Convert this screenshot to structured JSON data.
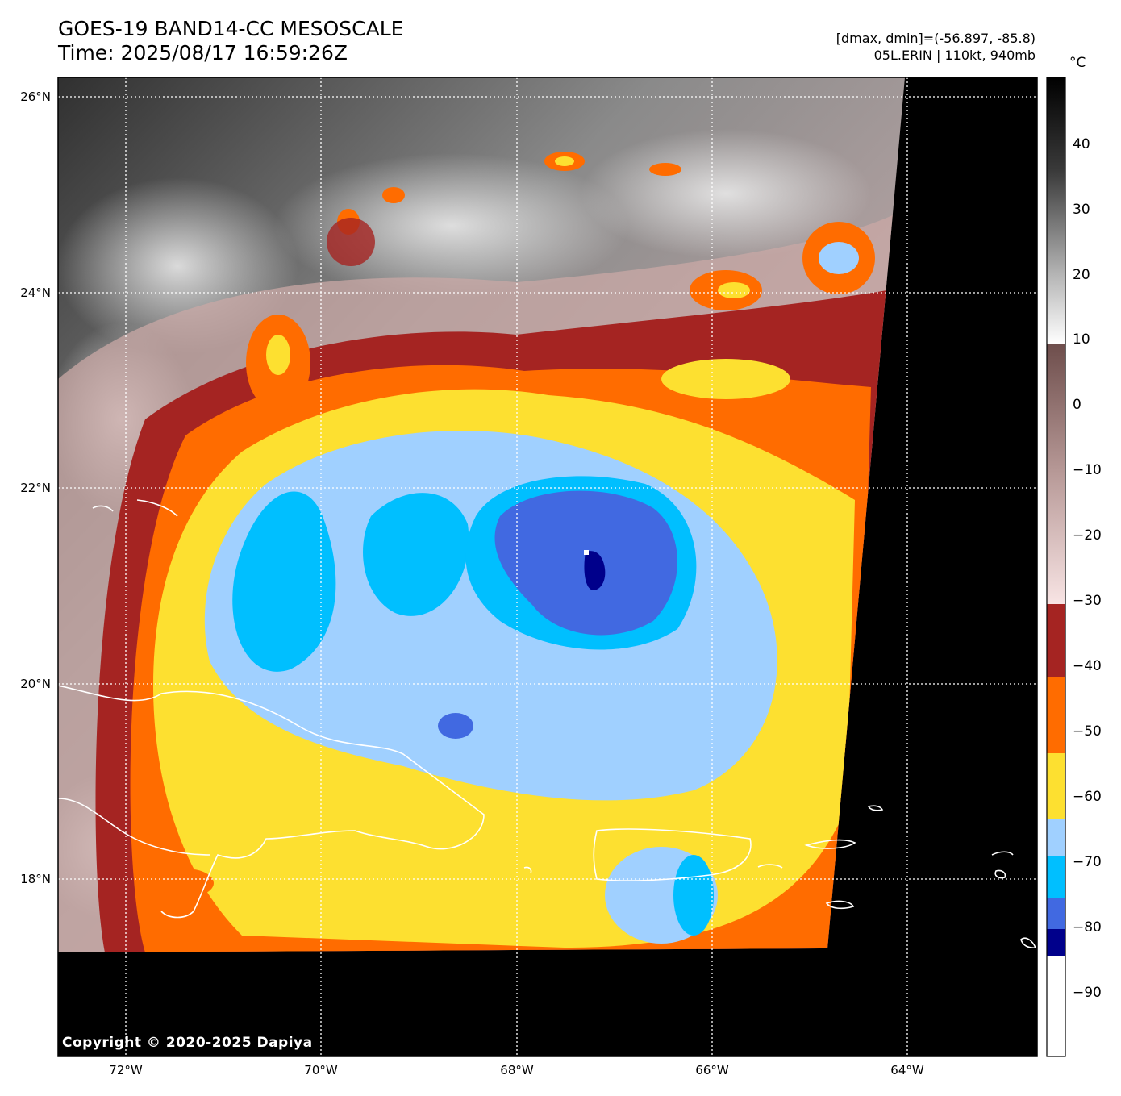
{
  "title": {
    "line1": "GOES-19 BAND14-CC MESOSCALE",
    "line2": "Time: 2025/08/17 16:59:26Z"
  },
  "info": {
    "range": "[dmax, dmin]=(-56.897, -85.8)",
    "storm": "05L.ERIN | 110kt, 940mb"
  },
  "colorbar": {
    "unit": "°C",
    "ticks": [
      "40",
      "30",
      "20",
      "10",
      "0",
      "−10",
      "−20",
      "−30",
      "−40",
      "−50",
      "−60",
      "−70",
      "−80",
      "−90"
    ]
  },
  "axes": {
    "lat_labels": [
      "26°N",
      "24°N",
      "22°N",
      "20°N",
      "18°N"
    ],
    "lon_labels": [
      "72°W",
      "70°W",
      "68°W",
      "66°W",
      "64°W"
    ]
  },
  "copyright": "Copyright © 2020-2025 Dapiya",
  "colors": {
    "cold_core": "#00008b",
    "deep_blue": "#4169e1",
    "cyan": "#00bfff",
    "light_blue": "#a0d0ff",
    "yellow": "#fde030",
    "orange": "#ff6c00",
    "brown_red": "#a52422",
    "pink": "#f0d0d0"
  }
}
